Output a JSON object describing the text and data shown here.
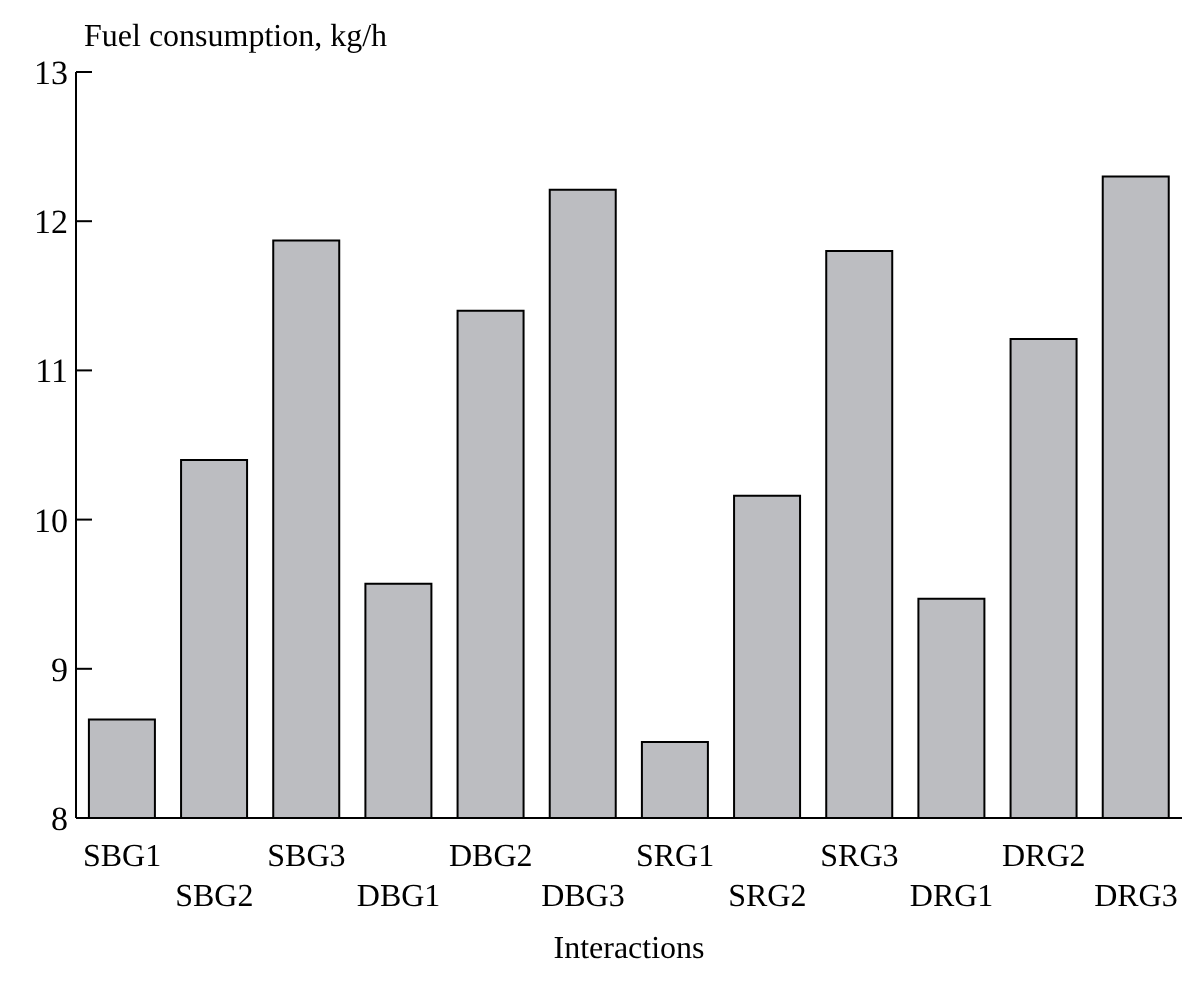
{
  "chart_data": {
    "type": "bar",
    "ylabel": "Fuel consumption, kg/h",
    "xlabel": "Interactions",
    "categories": [
      "SBG1",
      "SBG2",
      "SBG3",
      "DBG1",
      "DBG2",
      "DBG3",
      "SRG1",
      "SRG2",
      "SRG3",
      "DRG1",
      "DRG2",
      "DRG3"
    ],
    "values": [
      8.66,
      10.4,
      11.87,
      9.57,
      11.4,
      12.21,
      8.51,
      10.16,
      11.8,
      9.47,
      11.21,
      12.3
    ],
    "color": "#bcbdc1",
    "ylim": [
      8,
      13
    ],
    "yticks": [
      8,
      9,
      10,
      11,
      12,
      13
    ],
    "grid": false
  }
}
